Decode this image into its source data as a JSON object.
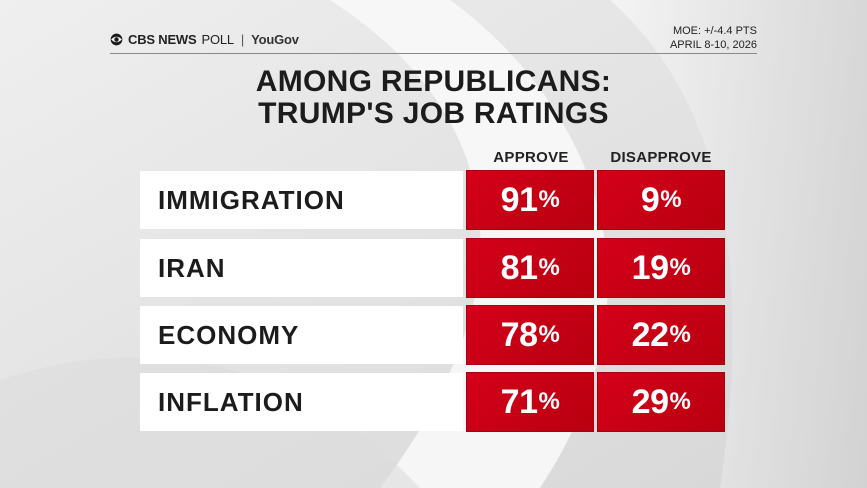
{
  "brand": {
    "network": "CBS NEWS",
    "poll": "POLL",
    "partner": "YouGov"
  },
  "meta": {
    "moe": "MOE: +/-4.4 PTS",
    "dates": "APRIL 8-10, 2026"
  },
  "chart_data": {
    "type": "table",
    "title_line1": "AMONG REPUBLICANS:",
    "title_line2": "TRUMP'S JOB RATINGS",
    "columns": [
      "APPROVE",
      "DISAPPROVE"
    ],
    "rows": [
      {
        "label": "IMMIGRATION",
        "values": [
          91,
          9
        ]
      },
      {
        "label": "IRAN",
        "values": [
          81,
          19
        ]
      },
      {
        "label": "ECONOMY",
        "values": [
          78,
          22
        ]
      },
      {
        "label": "INFLATION",
        "values": [
          71,
          29
        ]
      }
    ],
    "unit": "%",
    "cell_color": "#d4001a"
  }
}
